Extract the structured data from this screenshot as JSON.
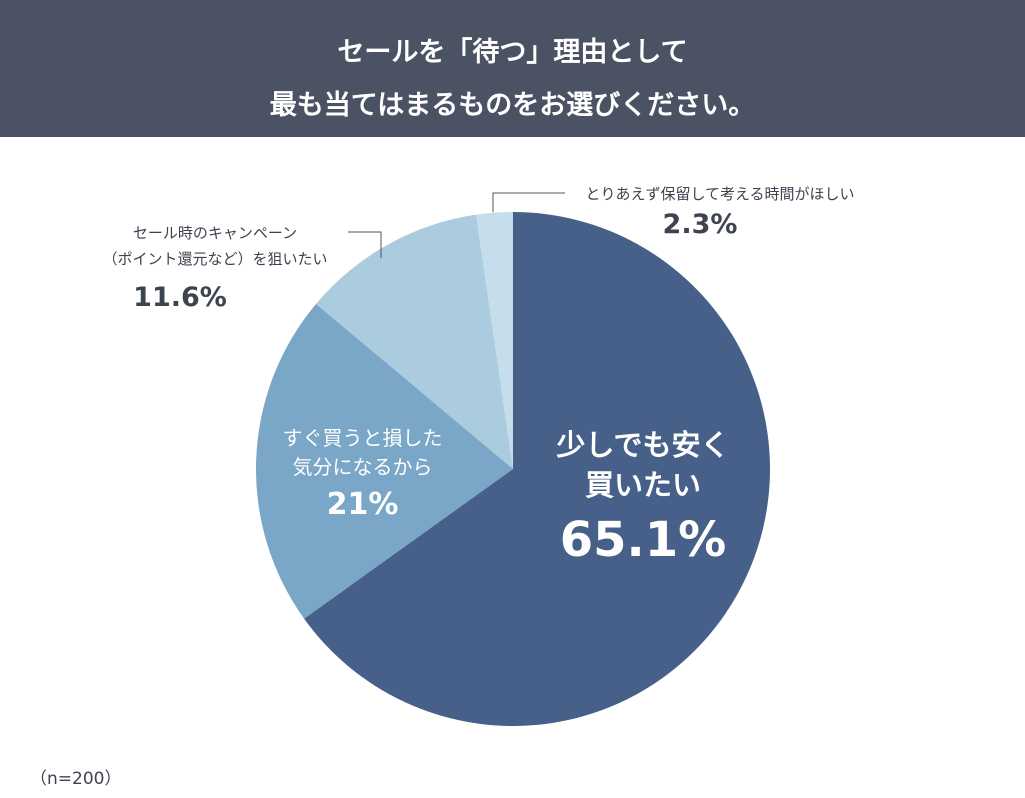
{
  "header": {
    "title_line1": "セールを「待つ」理由として",
    "title_line2": "最も当てはまるものをお選びください。"
  },
  "chart_data": {
    "type": "pie",
    "start": "top",
    "direction": "clockwise",
    "slices": [
      {
        "label_line1": "少しでも安く",
        "label_line2": "買いたい",
        "value": 65.1,
        "value_label": "65.1%",
        "color": "#46608a"
      },
      {
        "label_line1": "すぐ買うと損した",
        "label_line2": "気分になるから",
        "value": 21,
        "value_label": "21%",
        "color": "#7aa6c8"
      },
      {
        "label_line1": "セール時のキャンペーン",
        "label_line2": "（ポイント還元など）を狙いたい",
        "value": 11.6,
        "value_label": "11.6%",
        "color": "#abcbde"
      },
      {
        "label_line1": "とりあえず保留して考える時間がほしい",
        "value": 2.3,
        "value_label": "2.3%",
        "color": "#c6deec"
      }
    ]
  },
  "note": "（n=200）"
}
